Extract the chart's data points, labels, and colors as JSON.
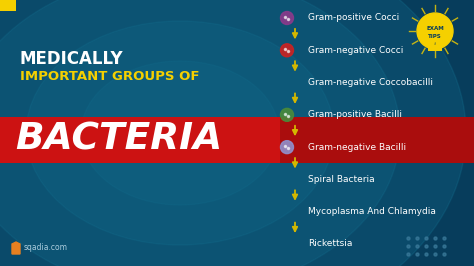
{
  "bg_color_dark": "#073d5c",
  "bg_color_mid": "#0e5f8a",
  "bg_color_center": "#1a7aaa",
  "title_line1": "MEDICALLY",
  "title_line2": "IMPORTANT GROUPS OF",
  "title_line3": "BACTERIA",
  "title_line1_color": "#ffffff",
  "title_line2_color": "#f5d000",
  "title_line3_color": "#ffffff",
  "banner_color": "#cc1212",
  "bacteria_items": [
    "Gram-positive Cocci",
    "Gram-negative Cocci",
    "Gram-negative Coccobacilli",
    "Gram-positive Bacilli",
    "Gram-negative Bacilli",
    "Spiral Bacteria",
    "Mycoplasma And Chlamydia",
    "Rickettsia"
  ],
  "arrow_color": "#d4b800",
  "item_text_color": "#ffffff",
  "item_text_fontsize": 6.5,
  "logo_text": "sqadia.com",
  "exam_tips_color": "#f5d000",
  "icon_colors": [
    "#8b3a8b",
    "#cc2222",
    null,
    "#4a8a3a",
    "#9090cc",
    null,
    null,
    null
  ],
  "has_icon": [
    true,
    true,
    false,
    true,
    true,
    false,
    false,
    false
  ],
  "dot_color": "#3a7a9a",
  "accent_yellow": "#f5d000"
}
